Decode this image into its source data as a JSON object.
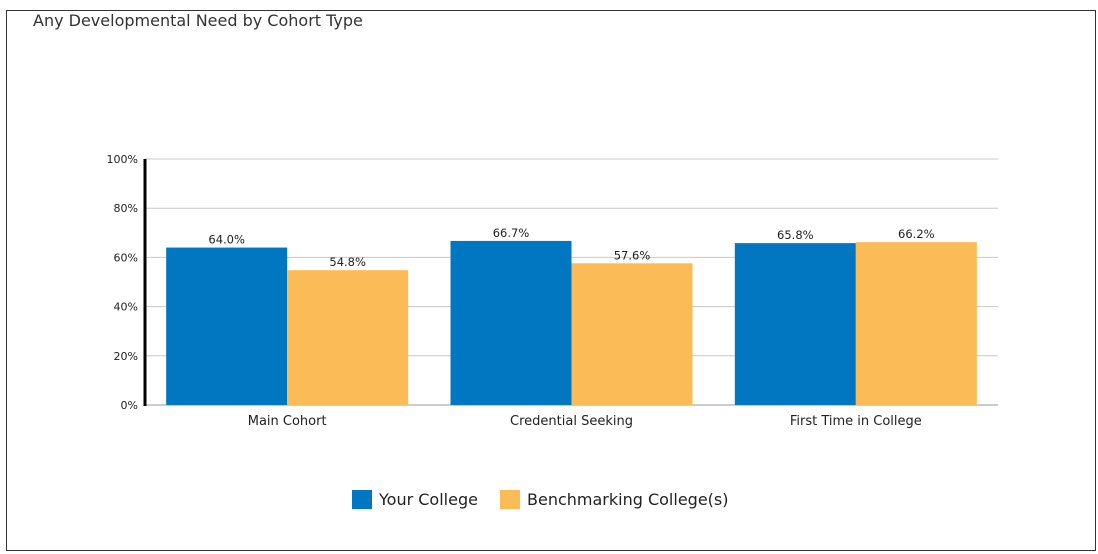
{
  "panel": {
    "title": "Any Developmental Need by Cohort Type"
  },
  "colors": {
    "series1": "#0077c0",
    "series2": "#fbbc57",
    "grid": "#c8c8c8",
    "axis": "#000000"
  },
  "chart_data": {
    "type": "bar",
    "title": "Any Developmental Need by Cohort Type",
    "categories": [
      "Main Cohort",
      "Credential Seeking",
      "First Time in College"
    ],
    "series": [
      {
        "name": "Your College",
        "values": [
          64.0,
          66.7,
          65.8
        ],
        "labels": [
          "64.0%",
          "66.7%",
          "65.8%"
        ]
      },
      {
        "name": "Benchmarking College(s)",
        "values": [
          54.8,
          57.6,
          66.2
        ],
        "labels": [
          "54.8%",
          "57.6%",
          "66.2%"
        ]
      }
    ],
    "yticks": [
      "0%",
      "20%",
      "40%",
      "60%",
      "80%",
      "100%"
    ],
    "ylim": [
      0,
      100
    ],
    "grid": true,
    "legend_position": "bottom-center"
  }
}
